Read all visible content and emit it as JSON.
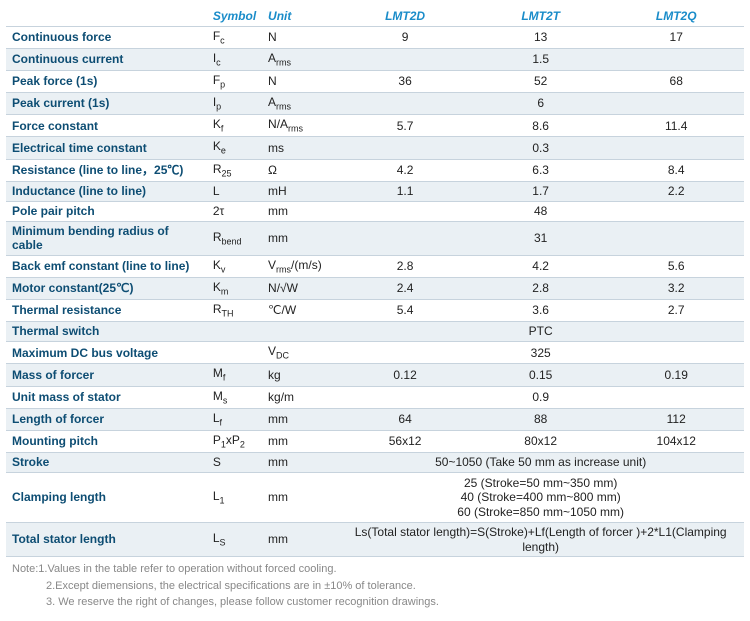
{
  "headers": {
    "symbol": "Symbol",
    "unit": "Unit",
    "m1": "LMT2D",
    "m2": "LMT2T",
    "m3": "LMT2Q"
  },
  "rows": [
    {
      "label": "Continuous force",
      "symbol": "F<span class='sub'>c</span>",
      "unit": "N",
      "v": [
        "9",
        "13",
        "17"
      ],
      "shade": false
    },
    {
      "label": "Continuous current",
      "symbol": "I<span class='sub'>c</span>",
      "unit": "A<span class='sub'>rms</span>",
      "v": [
        "1.5"
      ],
      "shade": true
    },
    {
      "label": "Peak force (1s)",
      "symbol": "F<span class='sub'>p</span>",
      "unit": "N",
      "v": [
        "36",
        "52",
        "68"
      ],
      "shade": false
    },
    {
      "label": "Peak current (1s)",
      "symbol": "I<span class='sub'>p</span>",
      "unit": "A<span class='sub'>rms</span>",
      "v": [
        "6"
      ],
      "shade": true
    },
    {
      "label": "Force constant",
      "symbol": "K<span class='sub'>f</span>",
      "unit": "N/A<span class='sub'>rms</span>",
      "v": [
        "5.7",
        "8.6",
        "11.4"
      ],
      "shade": false
    },
    {
      "label": "Electrical time constant",
      "symbol": "K<span class='sub'>e</span>",
      "unit": "ms",
      "v": [
        "0.3"
      ],
      "shade": true
    },
    {
      "label": "Resistance (line to line，25℃)",
      "symbol": "R<span class='sub'>25</span>",
      "unit": "Ω",
      "v": [
        "4.2",
        "6.3",
        "8.4"
      ],
      "shade": false
    },
    {
      "label": "Inductance (line to line)",
      "symbol": "L",
      "unit": "mH",
      "v": [
        "1.1",
        "1.7",
        "2.2"
      ],
      "shade": true
    },
    {
      "label": "Pole pair pitch",
      "symbol": "2τ",
      "unit": "mm",
      "v": [
        "48"
      ],
      "shade": false
    },
    {
      "label": "Minimum bending radius of cable",
      "symbol": "R<span class='sub'>bend</span>",
      "unit": "mm",
      "v": [
        "31"
      ],
      "shade": true
    },
    {
      "label": "Back emf constant (line to line)",
      "symbol": "K<span class='sub'>v</span>",
      "unit": "V<span class='sub'>rms</span>/(m/s)",
      "v": [
        "2.8",
        "4.2",
        "5.6"
      ],
      "shade": false
    },
    {
      "label": "Motor constant(25℃)",
      "symbol": "K<span class='sub'>m</span>",
      "unit": "N/√W",
      "v": [
        "2.4",
        "2.8",
        "3.2"
      ],
      "shade": true
    },
    {
      "label": "Thermal resistance",
      "symbol": "R<span class='sub'>TH</span>",
      "unit": "℃/W",
      "v": [
        "5.4",
        "3.6",
        "2.7"
      ],
      "shade": false
    },
    {
      "label": "Thermal switch",
      "symbol": "",
      "unit": "",
      "v": [
        "PTC"
      ],
      "shade": true
    },
    {
      "label": "Maximum DC bus voltage",
      "symbol": "",
      "unit": "V<span class='sub'>DC</span>",
      "v": [
        "325"
      ],
      "shade": false
    },
    {
      "label": "Mass of forcer",
      "symbol": "M<span class='sub'>f</span>",
      "unit": "kg",
      "v": [
        "0.12",
        "0.15",
        "0.19"
      ],
      "shade": true
    },
    {
      "label": "Unit mass of stator",
      "symbol": "M<span class='sub'>s</span>",
      "unit": "kg/m",
      "v": [
        "0.9"
      ],
      "shade": false
    },
    {
      "label": "Length of forcer",
      "symbol": "L<span class='sub'>f</span>",
      "unit": "mm",
      "v": [
        "64",
        "88",
        "112"
      ],
      "shade": true
    },
    {
      "label": "Mounting pitch",
      "symbol": "P<span class='sub'>1</span>xP<span class='sub'>2</span>",
      "unit": "mm",
      "v": [
        "56x12",
        "80x12",
        "104x12"
      ],
      "shade": false
    },
    {
      "label": "Stroke",
      "symbol": "S",
      "unit": "mm",
      "v": [
        "50~1050 (Take 50 mm as increase unit)"
      ],
      "shade": true
    },
    {
      "label": "Clamping length",
      "symbol": "L<span class='sub'>1</span>",
      "unit": "mm",
      "v": [
        "25 (Stroke=50 mm~350 mm)<br>40 (Stroke=400 mm~800 mm)<br>60 (Stroke=850 mm~1050 mm)"
      ],
      "shade": false,
      "tall": true
    },
    {
      "label": "Total stator length",
      "symbol": "L<span class='sub'>S</span>",
      "unit": "mm",
      "v": [
        "Ls(Total stator length)=S(Stroke)+Lf(Length of forcer )+2*L1(Clamping length)"
      ],
      "shade": true
    }
  ],
  "notes": [
    "Note:1.Values in the table refer to operation without forced cooling.",
    "2.Except diemensions, the electrical specifications are in ±10% of tolerance.",
    "3. We reserve the right of changes, please follow customer recognition drawings."
  ]
}
